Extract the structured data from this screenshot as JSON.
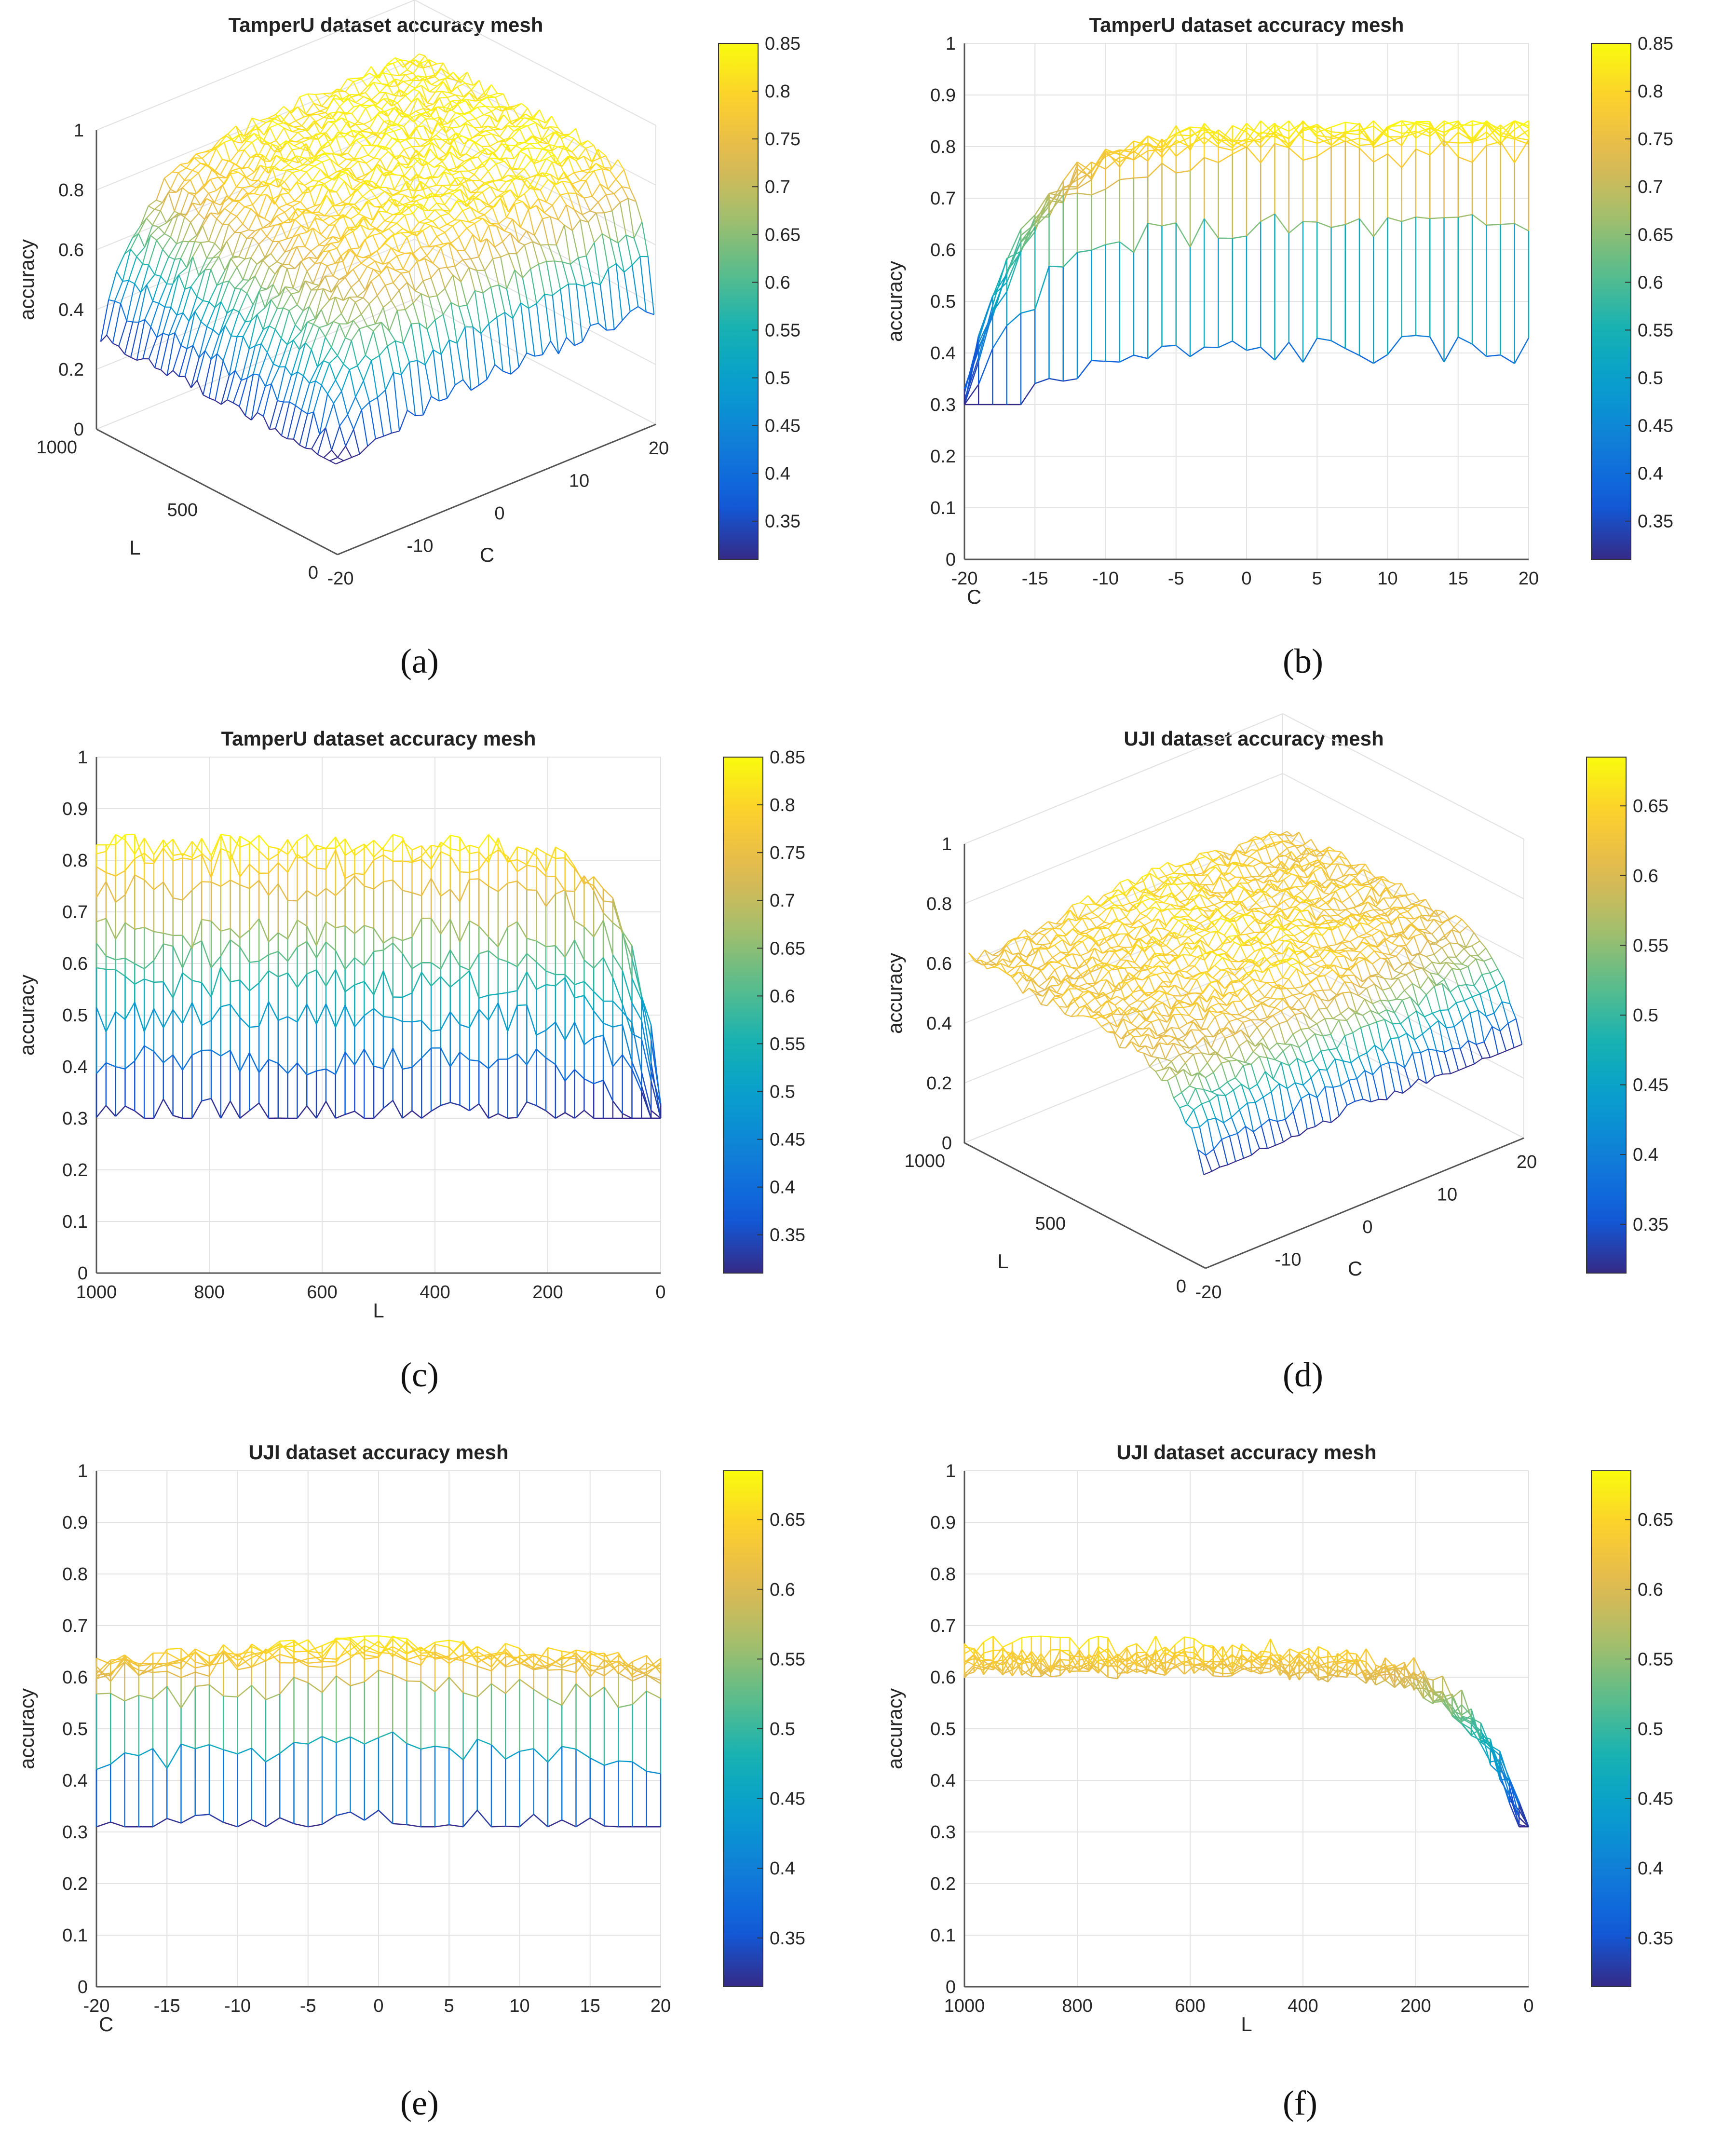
{
  "chart_data": [
    {
      "panel": "a",
      "type": "mesh3d",
      "title": "TamperU dataset accuracy mesh",
      "zlabel": "accuracy",
      "xlabel": "C",
      "ylabel": "L",
      "zticks": [
        "0",
        "0.2",
        "0.4",
        "0.6",
        "0.8",
        "1"
      ],
      "cticks": [
        "-20",
        "-10",
        "0",
        "10",
        "20"
      ],
      "lticks": [
        "0",
        "500",
        "1000"
      ],
      "zlim": [
        0,
        1
      ],
      "colorbar": {
        "min": 0.31,
        "max": 0.85,
        "ticks": [
          "0.35",
          "0.4",
          "0.45",
          "0.5",
          "0.55",
          "0.6",
          "0.65",
          "0.7",
          "0.75",
          "0.8",
          "0.85"
        ]
      },
      "caption": "(a)"
    },
    {
      "panel": "b",
      "type": "mesh-side",
      "title": "TamperU dataset accuracy mesh",
      "ylabel": "accuracy",
      "xlabel": "C",
      "xticks": [
        "-20",
        "-15",
        "-10",
        "-5",
        "0",
        "5",
        "10",
        "15",
        "20"
      ],
      "yticks": [
        "0",
        "0.1",
        "0.2",
        "0.3",
        "0.4",
        "0.5",
        "0.6",
        "0.7",
        "0.8",
        "0.9",
        "1"
      ],
      "xlim": [
        -20,
        20
      ],
      "ylim": [
        0,
        1
      ],
      "colorbar": {
        "min": 0.31,
        "max": 0.85,
        "ticks": [
          "0.35",
          "0.4",
          "0.45",
          "0.5",
          "0.55",
          "0.6",
          "0.65",
          "0.7",
          "0.75",
          "0.8",
          "0.85"
        ]
      },
      "caption": "(b)"
    },
    {
      "panel": "c",
      "type": "mesh-side",
      "title": "TamperU dataset accuracy mesh",
      "ylabel": "accuracy",
      "xlabel": "L",
      "xticks": [
        "1000",
        "800",
        "600",
        "400",
        "200",
        "0"
      ],
      "yticks": [
        "0",
        "0.1",
        "0.2",
        "0.3",
        "0.4",
        "0.5",
        "0.6",
        "0.7",
        "0.8",
        "0.9",
        "1"
      ],
      "xlim": [
        1000,
        0
      ],
      "ylim": [
        0,
        1
      ],
      "colorbar": {
        "min": 0.31,
        "max": 0.85,
        "ticks": [
          "0.35",
          "0.4",
          "0.45",
          "0.5",
          "0.55",
          "0.6",
          "0.65",
          "0.7",
          "0.75",
          "0.8",
          "0.85"
        ]
      },
      "caption": "(c)"
    },
    {
      "panel": "d",
      "type": "mesh3d",
      "title": "UJI dataset accuracy mesh",
      "zlabel": "accuracy",
      "xlabel": "C",
      "ylabel": "L",
      "zticks": [
        "0",
        "0.2",
        "0.4",
        "0.6",
        "0.8",
        "1"
      ],
      "cticks": [
        "-20",
        "-10",
        "0",
        "10",
        "20"
      ],
      "lticks": [
        "0",
        "500",
        "1000"
      ],
      "zlim": [
        0,
        1
      ],
      "colorbar": {
        "min": 0.315,
        "max": 0.685,
        "ticks": [
          "0.35",
          "0.4",
          "0.45",
          "0.5",
          "0.55",
          "0.6",
          "0.65"
        ]
      },
      "caption": "(d)"
    },
    {
      "panel": "e",
      "type": "mesh-side",
      "title": "UJI dataset accuracy mesh",
      "ylabel": "accuracy",
      "xlabel": "C",
      "xticks": [
        "-20",
        "-15",
        "-10",
        "-5",
        "0",
        "5",
        "10",
        "15",
        "20"
      ],
      "yticks": [
        "0",
        "0.1",
        "0.2",
        "0.3",
        "0.4",
        "0.5",
        "0.6",
        "0.7",
        "0.8",
        "0.9",
        "1"
      ],
      "xlim": [
        -20,
        20
      ],
      "ylim": [
        0,
        1
      ],
      "colorbar": {
        "min": 0.315,
        "max": 0.685,
        "ticks": [
          "0.35",
          "0.4",
          "0.45",
          "0.5",
          "0.55",
          "0.6",
          "0.65"
        ]
      },
      "caption": "(e)"
    },
    {
      "panel": "f",
      "type": "mesh-side",
      "title": "UJI dataset accuracy mesh",
      "ylabel": "accuracy",
      "xlabel": "L",
      "xticks": [
        "1000",
        "800",
        "600",
        "400",
        "200",
        "0"
      ],
      "yticks": [
        "0",
        "0.1",
        "0.2",
        "0.3",
        "0.4",
        "0.5",
        "0.6",
        "0.7",
        "0.8",
        "0.9",
        "1"
      ],
      "xlim": [
        1000,
        0
      ],
      "ylim": [
        0,
        1
      ],
      "colorbar": {
        "min": 0.315,
        "max": 0.685,
        "ticks": [
          "0.35",
          "0.4",
          "0.45",
          "0.5",
          "0.55",
          "0.6",
          "0.65"
        ]
      },
      "caption": "(f)"
    }
  ]
}
